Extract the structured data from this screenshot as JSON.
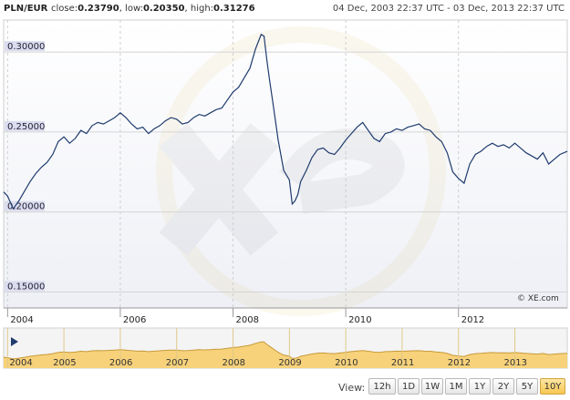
{
  "header": {
    "pair": "PLN/EUR",
    "close_label": "close:",
    "close_value": "0.23790",
    "low_label": "low:",
    "low_value": "0.20350",
    "high_label": "high:",
    "high_value": "0.31276",
    "date_range": "04 Dec, 2003 22:37 UTC - 03 Dec, 2013 22:37 UTC"
  },
  "credit": "© XE.com",
  "colors": {
    "line": "#1f3c6e",
    "axis_label_bg": "#dcdcf0",
    "nav_fill": "#f7d27a",
    "nav_stroke": "#c89a3a",
    "active_button": "#f6c650"
  },
  "chart_data": {
    "type": "line",
    "title": "",
    "xlabel": "",
    "ylabel": "",
    "xlim": [
      2003.93,
      2013.93
    ],
    "ylim": [
      0.14,
      0.32
    ],
    "yticks": [
      0.15,
      0.2,
      0.25,
      0.3
    ],
    "ytick_labels": [
      "0.15000",
      "0.20000",
      "0.25000",
      "0.30000"
    ],
    "xticks": [
      2004,
      2006,
      2008,
      2010,
      2012
    ],
    "xtick_labels": [
      "2004",
      "2006",
      "2008",
      "2010",
      "2012"
    ],
    "grid": true,
    "series": [
      {
        "x": [
          2003.93,
          2004.0,
          2004.1,
          2004.2,
          2004.3,
          2004.4,
          2004.5,
          2004.6,
          2004.7,
          2004.8,
          2004.9,
          2005.0,
          2005.1,
          2005.2,
          2005.3,
          2005.4,
          2005.5,
          2005.6,
          2005.7,
          2005.8,
          2005.9,
          2006.0,
          2006.1,
          2006.2,
          2006.3,
          2006.4,
          2006.5,
          2006.6,
          2006.7,
          2006.8,
          2006.9,
          2007.0,
          2007.1,
          2007.2,
          2007.3,
          2007.4,
          2007.5,
          2007.6,
          2007.7,
          2007.8,
          2007.9,
          2008.0,
          2008.1,
          2008.2,
          2008.3,
          2008.4,
          2008.5,
          2008.55,
          2008.6,
          2008.65,
          2008.7,
          2008.8,
          2008.9,
          2009.0,
          2009.05,
          2009.1,
          2009.15,
          2009.2,
          2009.3,
          2009.4,
          2009.5,
          2009.6,
          2009.7,
          2009.8,
          2009.9,
          2010.0,
          2010.1,
          2010.2,
          2010.3,
          2010.4,
          2010.5,
          2010.6,
          2010.7,
          2010.8,
          2010.9,
          2011.0,
          2011.1,
          2011.2,
          2011.3,
          2011.4,
          2011.5,
          2011.6,
          2011.7,
          2011.8,
          2011.9,
          2012.0,
          2012.1,
          2012.2,
          2012.3,
          2012.4,
          2012.5,
          2012.6,
          2012.7,
          2012.8,
          2012.9,
          2013.0,
          2013.1,
          2013.2,
          2013.3,
          2013.4,
          2013.5,
          2013.6,
          2013.7,
          2013.8,
          2013.93
        ],
        "y": [
          0.2125,
          0.21,
          0.202,
          0.207,
          0.213,
          0.219,
          0.224,
          0.228,
          0.231,
          0.236,
          0.244,
          0.247,
          0.243,
          0.246,
          0.251,
          0.249,
          0.254,
          0.256,
          0.255,
          0.257,
          0.259,
          0.262,
          0.259,
          0.255,
          0.252,
          0.253,
          0.249,
          0.252,
          0.254,
          0.257,
          0.259,
          0.258,
          0.255,
          0.256,
          0.259,
          0.261,
          0.26,
          0.262,
          0.264,
          0.265,
          0.27,
          0.275,
          0.278,
          0.284,
          0.29,
          0.302,
          0.311,
          0.31,
          0.295,
          0.282,
          0.27,
          0.245,
          0.226,
          0.22,
          0.205,
          0.207,
          0.211,
          0.219,
          0.226,
          0.234,
          0.239,
          0.24,
          0.237,
          0.236,
          0.24,
          0.245,
          0.249,
          0.253,
          0.256,
          0.251,
          0.246,
          0.244,
          0.249,
          0.25,
          0.252,
          0.251,
          0.253,
          0.254,
          0.255,
          0.252,
          0.251,
          0.247,
          0.244,
          0.237,
          0.225,
          0.221,
          0.218,
          0.23,
          0.236,
          0.238,
          0.241,
          0.243,
          0.241,
          0.242,
          0.24,
          0.243,
          0.24,
          0.237,
          0.235,
          0.233,
          0.237,
          0.23,
          0.233,
          0.236,
          0.2379
        ]
      }
    ]
  },
  "navigator": {
    "year_labels": [
      "2004",
      "2005",
      "2006",
      "2007",
      "2008",
      "2009",
      "2010",
      "2011",
      "2012",
      "2013"
    ],
    "year_values": [
      2004,
      2005,
      2006,
      2007,
      2008,
      2009,
      2010,
      2011,
      2012,
      2013
    ],
    "play_icon": "play-icon"
  },
  "controls": {
    "view_label": "View:",
    "buttons": [
      "12h",
      "1D",
      "1W",
      "1M",
      "1Y",
      "2Y",
      "5Y",
      "10Y"
    ],
    "active": "10Y"
  }
}
